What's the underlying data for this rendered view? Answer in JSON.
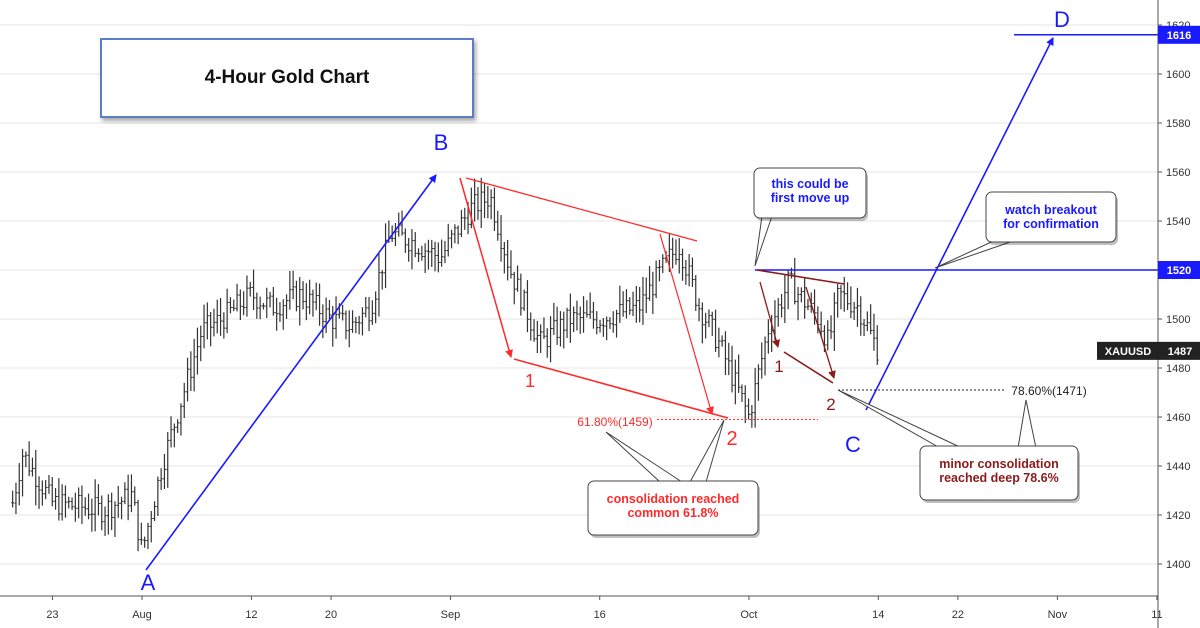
{
  "title": "4-Hour Gold Chart",
  "symbol": "XAUUSD",
  "colors": {
    "candles": "#333333",
    "impulse": "#1a1aff",
    "consolidation": "#ff2a2a",
    "minor": "#8b1a1a",
    "grid": "#e6e6e6"
  },
  "chart_data": {
    "type": "ohlc",
    "instrument": "XAUUSD",
    "timeframe": "4H",
    "x_ticks": [
      "23",
      "Aug",
      "12",
      "20",
      "Sep",
      "16",
      "Oct",
      "14",
      "22",
      "Nov",
      "11"
    ],
    "y_ticks": [
      1400,
      1420,
      1440,
      1460,
      1480,
      1500,
      1520,
      1540,
      1560,
      1580,
      1600,
      1620
    ],
    "ylim": [
      1384,
      1625
    ],
    "last_price": 1487,
    "price_labels": [
      {
        "label": "1616",
        "value": 1616
      },
      {
        "label": "1520",
        "value": 1520
      },
      {
        "label": "XAUUSD",
        "value": 1487,
        "price": "1487"
      }
    ],
    "price_path": [
      {
        "date": "2019-07-19",
        "value": 1425
      },
      {
        "date": "2019-07-20",
        "value": 1445
      },
      {
        "date": "2019-07-23",
        "value": 1425
      },
      {
        "date": "2019-07-28",
        "value": 1422
      },
      {
        "date": "2019-07-31",
        "value": 1428
      },
      {
        "date": "2019-08-01",
        "value": 1405
      },
      {
        "date": "2019-08-03",
        "value": 1440
      },
      {
        "date": "2019-08-07",
        "value": 1495
      },
      {
        "date": "2019-08-09",
        "value": 1500
      },
      {
        "date": "2019-08-12",
        "value": 1510
      },
      {
        "date": "2019-08-14",
        "value": 1505
      },
      {
        "date": "2019-08-17",
        "value": 1510
      },
      {
        "date": "2019-08-20",
        "value": 1500
      },
      {
        "date": "2019-08-22",
        "value": 1497
      },
      {
        "date": "2019-08-24",
        "value": 1505
      },
      {
        "date": "2019-08-26",
        "value": 1535
      },
      {
        "date": "2019-08-28",
        "value": 1532
      },
      {
        "date": "2019-08-31",
        "value": 1525
      },
      {
        "date": "2019-09-03",
        "value": 1545
      },
      {
        "date": "2019-09-05",
        "value": 1550
      },
      {
        "date": "2019-09-07",
        "value": 1520
      },
      {
        "date": "2019-09-10",
        "value": 1490
      },
      {
        "date": "2019-09-13",
        "value": 1500
      },
      {
        "date": "2019-09-16",
        "value": 1500
      },
      {
        "date": "2019-09-20",
        "value": 1505
      },
      {
        "date": "2019-09-23",
        "value": 1525
      },
      {
        "date": "2019-09-24",
        "value": 1530
      },
      {
        "date": "2019-09-26",
        "value": 1505
      },
      {
        "date": "2019-09-28",
        "value": 1490
      },
      {
        "date": "2019-10-01",
        "value": 1460
      },
      {
        "date": "2019-10-03",
        "value": 1497
      },
      {
        "date": "2019-10-04",
        "value": 1505
      },
      {
        "date": "2019-10-05",
        "value": 1515
      },
      {
        "date": "2019-10-08",
        "value": 1500
      },
      {
        "date": "2019-10-09",
        "value": 1490
      },
      {
        "date": "2019-10-10",
        "value": 1510
      },
      {
        "date": "2019-10-12",
        "value": 1505
      },
      {
        "date": "2019-10-14",
        "value": 1487
      }
    ],
    "wave_labels": [
      {
        "label": "A",
        "date": "2019-08-01",
        "value": 1394,
        "color": "#1a1aff"
      },
      {
        "label": "B",
        "date": "2019-09-01",
        "value": 1566,
        "color": "#1a1aff"
      },
      {
        "label": "1",
        "date": "2019-09-10",
        "value": 1476,
        "color": "#ff2a2a"
      },
      {
        "label": "2",
        "date": "2019-10-01",
        "value": 1452,
        "color": "#ff2a2a"
      },
      {
        "label": "1",
        "date": "2019-10-07",
        "value": 1481,
        "color": "#8b1a1a"
      },
      {
        "label": "2",
        "date": "2019-10-13",
        "value": 1465,
        "color": "#8b1a1a"
      },
      {
        "label": "C",
        "date": "2019-10-15",
        "value": 1451,
        "color": "#1a1aff"
      },
      {
        "label": "D",
        "date": "2019-11-06",
        "value": 1626,
        "color": "#1a1aff"
      }
    ],
    "levels": [
      {
        "label": "61.80%(1459)",
        "value": 1459
      },
      {
        "label": "78.60%(1471)",
        "value": 1471
      }
    ],
    "callouts": [
      {
        "text": [
          "this could be",
          "first move up"
        ],
        "color": "#1a1aff"
      },
      {
        "text": [
          "watch breakout",
          "for confirmation"
        ],
        "color": "#1a1aff"
      },
      {
        "text": [
          "consolidation reached",
          "common 61.8%"
        ],
        "color": "#ff2a2a"
      },
      {
        "text": [
          "minor consolidation",
          "reached deep 78.6%"
        ],
        "color": "#8b1a1a"
      }
    ]
  }
}
